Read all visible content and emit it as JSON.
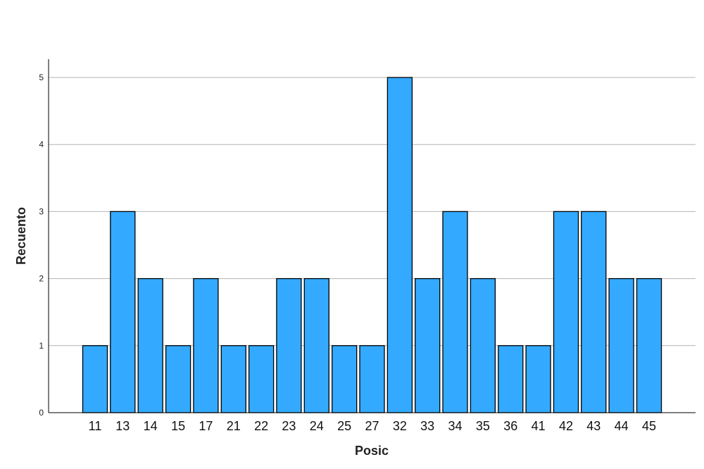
{
  "chart_data": {
    "type": "bar",
    "xlabel": "Posic",
    "ylabel": "Recuento",
    "categories": [
      "11",
      "13",
      "14",
      "15",
      "17",
      "21",
      "22",
      "23",
      "24",
      "25",
      "27",
      "32",
      "33",
      "34",
      "35",
      "36",
      "41",
      "42",
      "43",
      "44",
      "45"
    ],
    "values": [
      1,
      3,
      2,
      1,
      2,
      1,
      1,
      2,
      2,
      1,
      1,
      5,
      2,
      3,
      2,
      1,
      1,
      3,
      3,
      2,
      2
    ],
    "ylim": [
      0,
      5
    ],
    "yticks": [
      0,
      1,
      2,
      3,
      4,
      5
    ],
    "grid": true,
    "bar_color": "#33aaff",
    "bar_edge_color": "#000000",
    "grid_color": "#b3b3b3"
  }
}
